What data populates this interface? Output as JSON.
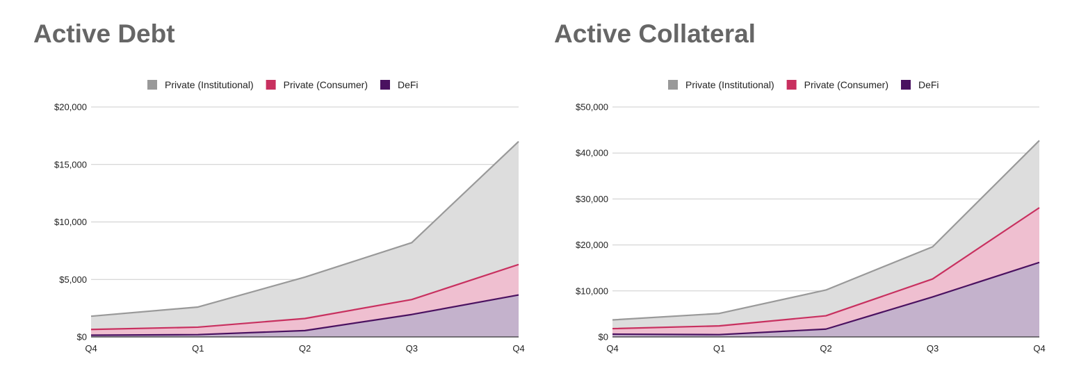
{
  "colors": {
    "institutional": "#999999",
    "consumer": "#c8305f",
    "defi": "#4a1160",
    "institutional_fill": "#dddddd",
    "consumer_fill": "#efbfd0",
    "defi_fill": "#c4b2cc",
    "grid": "#cccccc",
    "axis": "#333333",
    "title": "#666666"
  },
  "charts": [
    {
      "title": "Active Debt",
      "chart_data": {
        "type": "area",
        "title": "Active Debt",
        "categories": [
          "Q4",
          "Q1",
          "Q2",
          "Q3",
          "Q4"
        ],
        "ylim": [
          0,
          20000
        ],
        "yticks": [
          0,
          5000,
          10000,
          15000,
          20000
        ],
        "ytick_labels": [
          "$0",
          "$5,000",
          "$10,000",
          "$15,000",
          "$20,000"
        ],
        "grid": true,
        "legend": "top-center",
        "series": [
          {
            "name": "Private (Institutional)",
            "key": "institutional",
            "values": [
              1800,
              2600,
              5200,
              8200,
              17000
            ]
          },
          {
            "name": "Private (Consumer)",
            "key": "consumer",
            "values": [
              650,
              850,
              1600,
              3250,
              6300
            ]
          },
          {
            "name": "DeFi",
            "key": "defi",
            "values": [
              150,
              200,
              550,
              1950,
              3650
            ]
          }
        ]
      }
    },
    {
      "title": "Active Collateral",
      "chart_data": {
        "type": "area",
        "title": "Active Collateral",
        "categories": [
          "Q4",
          "Q1",
          "Q2",
          "Q3",
          "Q4"
        ],
        "ylim": [
          0,
          50000
        ],
        "yticks": [
          0,
          10000,
          20000,
          30000,
          40000,
          50000
        ],
        "ytick_labels": [
          "$0",
          "$10,000",
          "$20,000",
          "$30,000",
          "$40,000",
          "$50,000"
        ],
        "grid": true,
        "legend": "top-center",
        "series": [
          {
            "name": "Private (Institutional)",
            "key": "institutional",
            "values": [
              3700,
              5100,
              10200,
              19600,
              42700
            ]
          },
          {
            "name": "Private (Consumer)",
            "key": "consumer",
            "values": [
              1800,
              2400,
              4600,
              12600,
              28100
            ]
          },
          {
            "name": "DeFi",
            "key": "defi",
            "values": [
              600,
              500,
              1700,
              8700,
              16200
            ]
          }
        ]
      }
    }
  ]
}
